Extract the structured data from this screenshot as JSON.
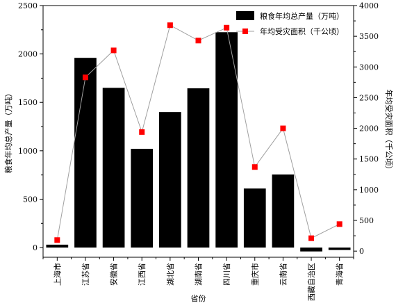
{
  "chart_data": {
    "type": "bar",
    "categories": [
      "上海市",
      "江苏省",
      "安徽省",
      "江西省",
      "湖北省",
      "湖南省",
      "四川省",
      "重庆市",
      "云南省",
      "西藏自治区",
      "青海省"
    ],
    "xlabel": "省份",
    "ylabel_left": "粮食年均总产量（万吨）",
    "ylabel_right": "年均受灾面积（千公顷）",
    "ylim_left": [
      -100,
      2500
    ],
    "ylim_right": [
      -100,
      4000
    ],
    "yticks_left": [
      "0",
      "500",
      "1000",
      "1500",
      "2000",
      "2500"
    ],
    "yticks_right": [
      "0",
      "500",
      "1000",
      "1500",
      "2000",
      "2500",
      "3000",
      "3500",
      "4000"
    ],
    "series": [
      {
        "name": "粮食年均总产量（万吨）",
        "type": "bar",
        "axis": "left",
        "color": "#000000",
        "values": [
          30,
          1960,
          1650,
          1020,
          1400,
          1645,
          2225,
          610,
          755,
          -40,
          -25
        ]
      },
      {
        "name": "年均受灾面积（千公顷）",
        "type": "line",
        "axis": "right",
        "color": "#ff0000",
        "line_color": "#a0a0a0",
        "values": [
          180,
          2830,
          3270,
          1940,
          3680,
          3430,
          3640,
          1370,
          2000,
          210,
          440
        ]
      }
    ],
    "legend_position": "top-right",
    "grid": false
  }
}
